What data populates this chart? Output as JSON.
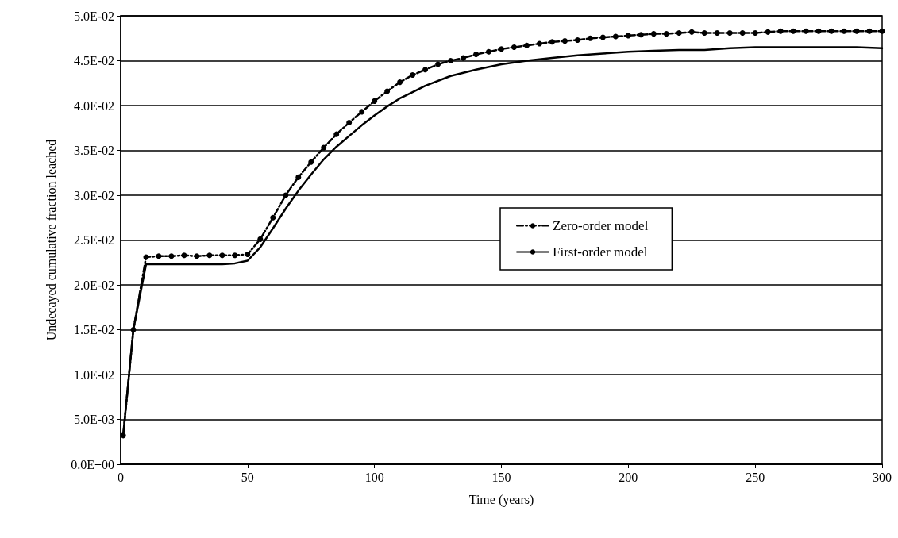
{
  "chart_data": {
    "type": "line",
    "xlabel": "Time (years)",
    "ylabel": "Undecayed cumulative fraction leached",
    "xlim": [
      0,
      300
    ],
    "xticks": [
      0,
      50,
      100,
      150,
      200,
      250,
      300
    ],
    "ylim": [
      0,
      0.05
    ],
    "yticks": [
      {
        "value": 0,
        "label": "0.0E+00"
      },
      {
        "value": 0.005,
        "label": "5.0E-03"
      },
      {
        "value": 0.01,
        "label": "1.0E-02"
      },
      {
        "value": 0.015,
        "label": "1.5E-02"
      },
      {
        "value": 0.02,
        "label": "2.0E-02"
      },
      {
        "value": 0.025,
        "label": "2.5E-02"
      },
      {
        "value": 0.03,
        "label": "3.0E-02"
      },
      {
        "value": 0.035,
        "label": "3.5E-02"
      },
      {
        "value": 0.04,
        "label": "4.0E-02"
      },
      {
        "value": 0.045,
        "label": "4.5E-02"
      },
      {
        "value": 0.05,
        "label": "5.0E-02"
      }
    ],
    "grid": "y",
    "legend": "right",
    "series": [
      {
        "name": "Zero-order model",
        "color": "#000000",
        "marker": "circle",
        "line_style": "dashed",
        "x": [
          1,
          5,
          10,
          15,
          20,
          25,
          30,
          35,
          40,
          45,
          50,
          55,
          60,
          65,
          70,
          75,
          80,
          85,
          90,
          95,
          100,
          105,
          110,
          115,
          120,
          125,
          130,
          135,
          140,
          145,
          150,
          155,
          160,
          165,
          170,
          175,
          180,
          185,
          190,
          195,
          200,
          205,
          210,
          215,
          220,
          225,
          230,
          235,
          240,
          245,
          250,
          255,
          260,
          265,
          270,
          275,
          280,
          285,
          290,
          295,
          300
        ],
        "values": [
          0.0032,
          0.015,
          0.0231,
          0.0232,
          0.0232,
          0.0233,
          0.0232,
          0.0233,
          0.0233,
          0.0233,
          0.0234,
          0.0251,
          0.0275,
          0.03,
          0.032,
          0.0337,
          0.0353,
          0.0368,
          0.0381,
          0.0393,
          0.0405,
          0.0416,
          0.0426,
          0.0434,
          0.044,
          0.0446,
          0.045,
          0.0453,
          0.0457,
          0.046,
          0.0463,
          0.0465,
          0.0467,
          0.0469,
          0.0471,
          0.0472,
          0.0473,
          0.0475,
          0.0476,
          0.0477,
          0.0478,
          0.0479,
          0.048,
          0.048,
          0.0481,
          0.0482,
          0.0481,
          0.0481,
          0.0481,
          0.0481,
          0.0481,
          0.0482,
          0.0483,
          0.0483,
          0.0483,
          0.0483,
          0.0483,
          0.0483,
          0.0483,
          0.0483,
          0.0483
        ]
      },
      {
        "name": "First-order model",
        "color": "#000000",
        "marker": "none",
        "line_style": "solid",
        "x": [
          1,
          5,
          10,
          20,
          30,
          40,
          45,
          50,
          55,
          60,
          65,
          70,
          75,
          80,
          85,
          90,
          95,
          100,
          105,
          110,
          115,
          120,
          130,
          140,
          150,
          160,
          170,
          180,
          190,
          200,
          210,
          220,
          230,
          240,
          250,
          260,
          270,
          280,
          290,
          300
        ],
        "values": [
          0.0033,
          0.015,
          0.0223,
          0.0223,
          0.0223,
          0.0223,
          0.0224,
          0.0227,
          0.0242,
          0.0263,
          0.0285,
          0.0305,
          0.0323,
          0.034,
          0.0354,
          0.0366,
          0.0378,
          0.0389,
          0.0399,
          0.0408,
          0.0415,
          0.0422,
          0.0433,
          0.044,
          0.0446,
          0.045,
          0.0453,
          0.0456,
          0.0458,
          0.046,
          0.0461,
          0.0462,
          0.0462,
          0.0464,
          0.0465,
          0.0465,
          0.0465,
          0.0465,
          0.0465,
          0.0464
        ]
      }
    ]
  }
}
